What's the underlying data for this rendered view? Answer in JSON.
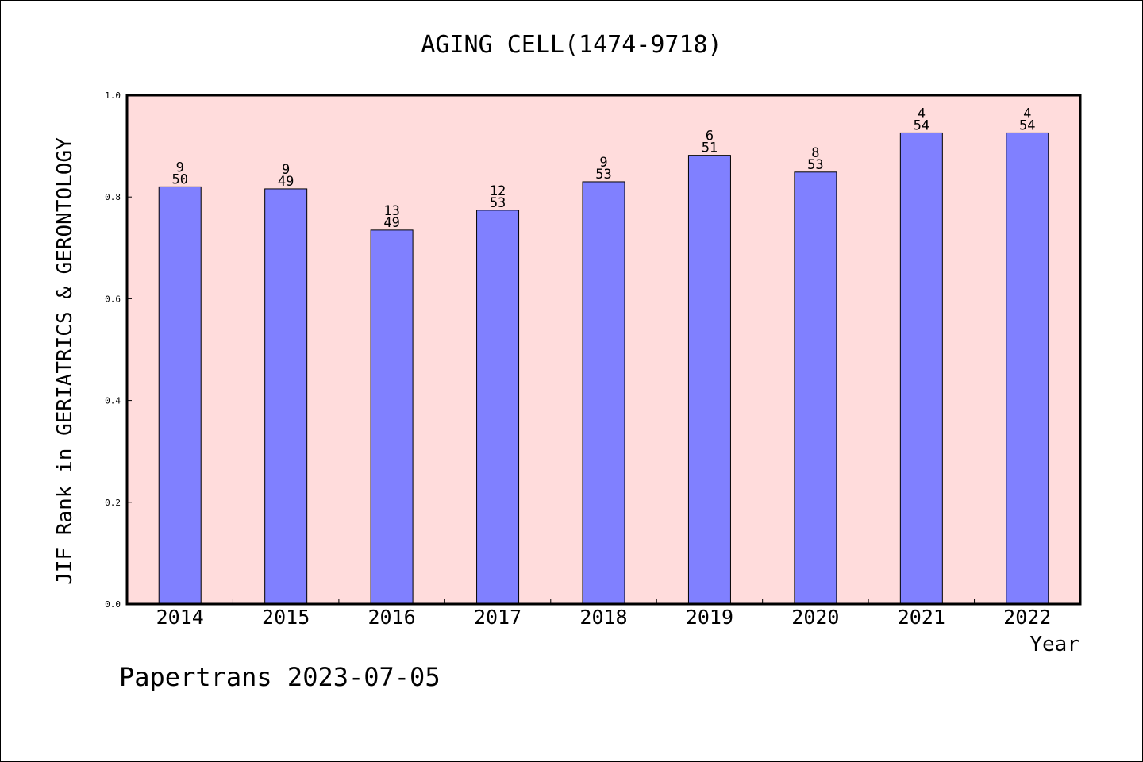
{
  "chart_data": {
    "type": "bar",
    "title": "AGING CELL(1474-9718)",
    "xlabel": "Year",
    "ylabel": "JIF Rank in GERIATRICS & GERONTOLOGY",
    "ylim": [
      0,
      1.0
    ],
    "yticks": [
      "0.0",
      "0.2",
      "0.4",
      "0.6",
      "0.8",
      "1.0"
    ],
    "categories": [
      "2014",
      "2015",
      "2016",
      "2017",
      "2018",
      "2019",
      "2020",
      "2021",
      "2022"
    ],
    "values": [
      0.82,
      0.816,
      0.735,
      0.774,
      0.83,
      0.882,
      0.849,
      0.926,
      0.926
    ],
    "rank": [
      "9",
      "9",
      "13",
      "12",
      "9",
      "6",
      "8",
      "4",
      "4"
    ],
    "total": [
      "50",
      "49",
      "49",
      "53",
      "53",
      "51",
      "53",
      "54",
      "54"
    ],
    "grid": false,
    "colors": {
      "plot_background": "#ffdcdc",
      "bar_fill": "#8080ff",
      "bar_stroke": "#000000"
    }
  },
  "footer": {
    "credit": "Papertrans 2023-07-05"
  }
}
